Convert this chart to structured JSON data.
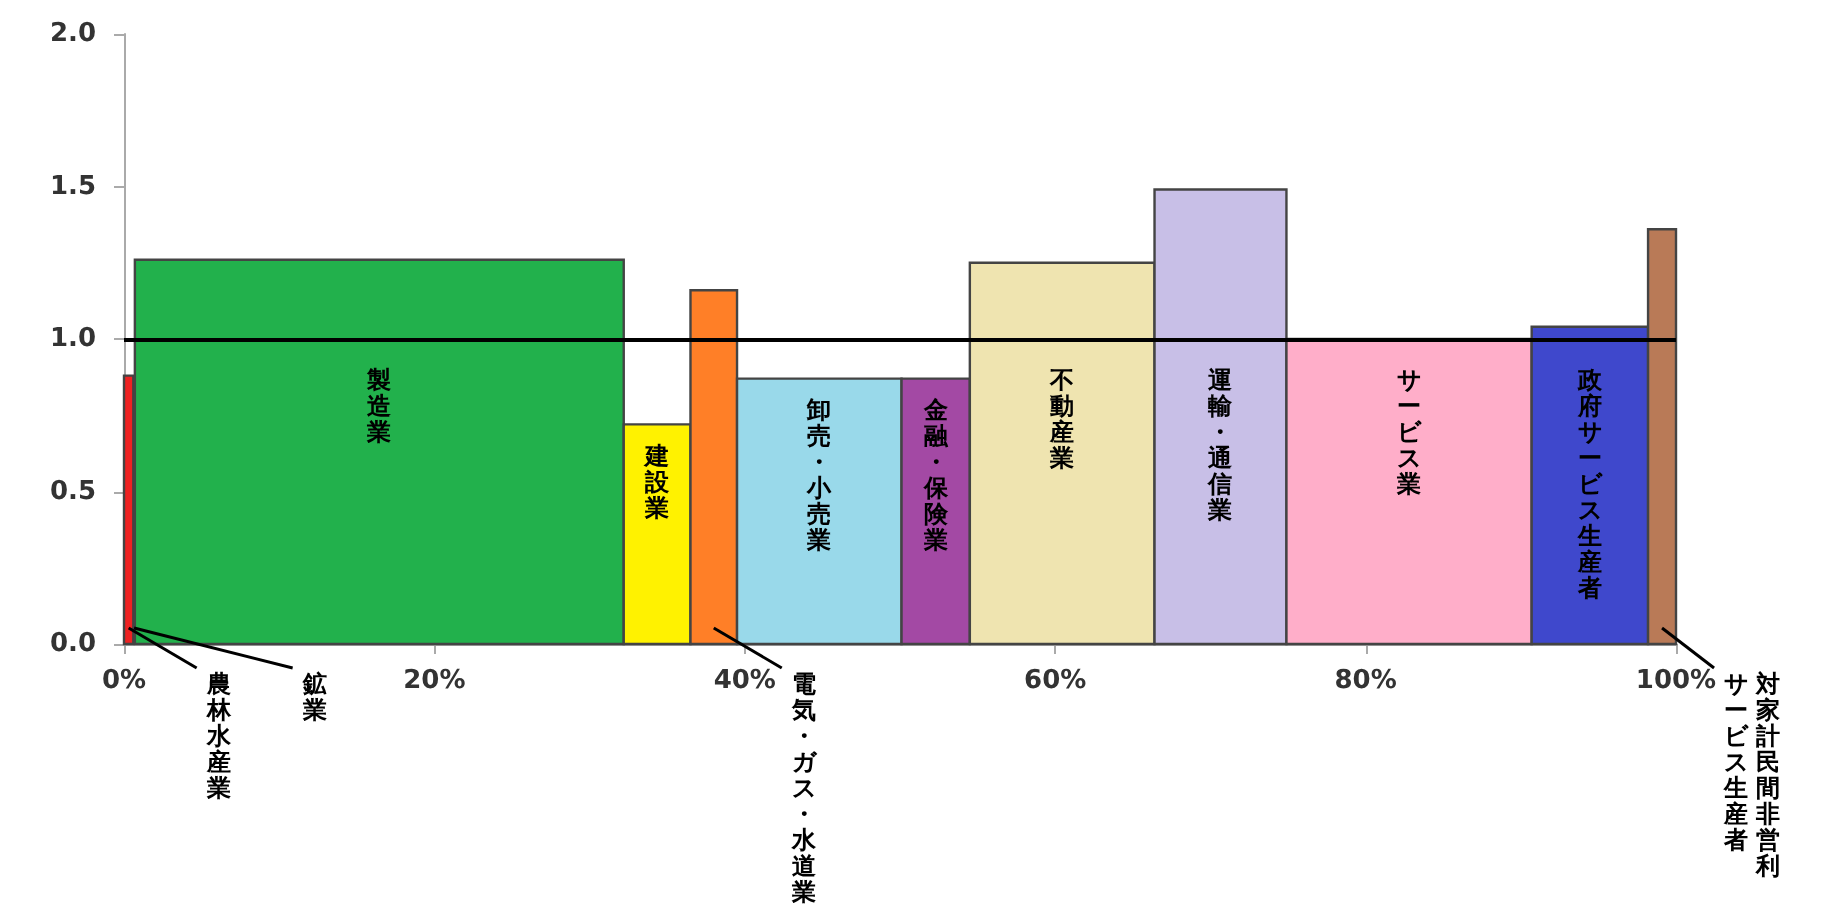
{
  "chart_data": {
    "type": "histogram",
    "categories": [
      "農林水産業",
      "鉱業",
      "製造業",
      "建設業",
      "電気・ガス・水道業",
      "卸売・小売業",
      "金融・保険業",
      "不動産業",
      "運輸・通信業",
      "サービス業",
      "政府サービス生産者",
      "対家計民間非営利サービス生産者"
    ],
    "bins": [
      0,
      0.6,
      0.7,
      32.2,
      36.5,
      39.5,
      50.1,
      54.5,
      66.4,
      74.9,
      90.7,
      98.2,
      100
    ],
    "values": [
      0.88,
      null,
      1.26,
      0.72,
      1.16,
      0.87,
      0.87,
      1.25,
      1.49,
      1.0,
      1.04,
      1.36
    ],
    "colors": [
      "#ee2222",
      null,
      "#22b14c",
      "#fff200",
      "#ff7f27",
      "#99d9ea",
      "#a349a4",
      "#efe4b0",
      "#c8bfe7",
      "#ffaec9",
      "#3f48cc",
      "#b97a57"
    ],
    "xlim": [
      0,
      100
    ],
    "xticks": [
      {
        "value": 0,
        "label": "0%"
      },
      {
        "value": 20,
        "label": "20%"
      },
      {
        "value": 40,
        "label": "40%"
      },
      {
        "value": 60,
        "label": "60%"
      },
      {
        "value": 80,
        "label": "80%"
      },
      {
        "value": 100,
        "label": "100%"
      }
    ],
    "ylim": [
      0,
      2
    ],
    "yticks": [
      {
        "value": 0,
        "label": "0.0"
      },
      {
        "value": 0.5,
        "label": "0.5"
      },
      {
        "value": 1,
        "label": "1.0"
      },
      {
        "value": 1.5,
        "label": "1.5"
      },
      {
        "value": 2,
        "label": "2.0"
      }
    ],
    "ref_lines": [
      {
        "axis": "y",
        "value": 1,
        "color": "#000000"
      }
    ]
  }
}
